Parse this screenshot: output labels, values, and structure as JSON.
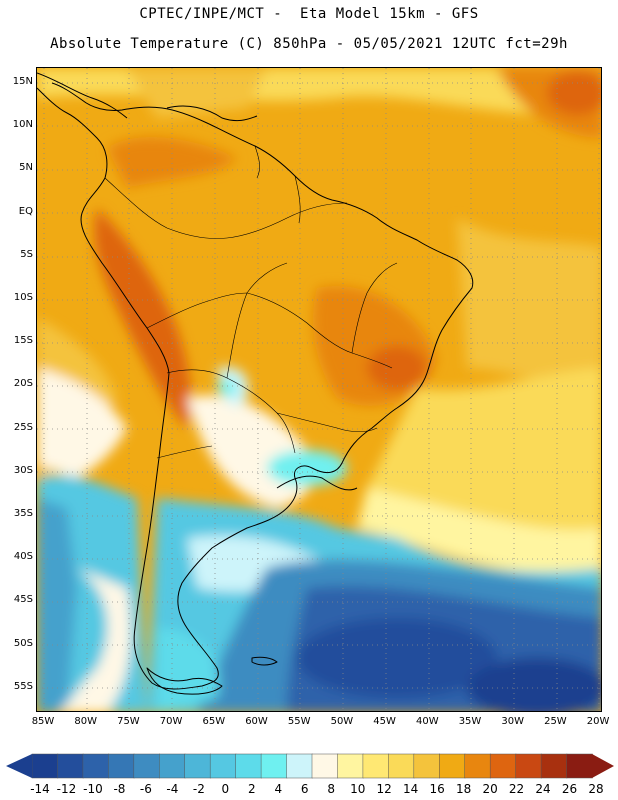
{
  "title_line1": "CPTEC/INPE/MCT -  Eta Model 15km - GFS",
  "title_line2": "Absolute Temperature (C) 850hPa - 05/05/2021 12UTC fct=29h",
  "lat_labels": [
    "15N",
    "10N",
    "5N",
    "EQ",
    "5S",
    "10S",
    "15S",
    "20S",
    "25S",
    "30S",
    "35S",
    "40S",
    "45S",
    "50S",
    "55S"
  ],
  "lon_labels": [
    "85W",
    "80W",
    "75W",
    "70W",
    "65W",
    "60W",
    "55W",
    "50W",
    "45W",
    "40W",
    "35W",
    "30W",
    "25W",
    "20W"
  ],
  "colorbar": {
    "labels": [
      "-14",
      "-12",
      "-10",
      "-8",
      "-6",
      "-4",
      "-2",
      "0",
      "2",
      "4",
      "6",
      "8",
      "10",
      "12",
      "14",
      "16",
      "18",
      "20",
      "22",
      "24",
      "26",
      "28"
    ],
    "colors": [
      "#1b3f8f",
      "#234e9c",
      "#2d62aa",
      "#3577b5",
      "#3e8cc1",
      "#45a1cc",
      "#4db6d8",
      "#55c8e2",
      "#5ddbea",
      "#6ff0f0",
      "#cdf4fa",
      "#fff8e6",
      "#fff5a0",
      "#ffe873",
      "#fada58",
      "#f4c33c",
      "#f0aa14",
      "#e8860f",
      "#de6510",
      "#c94812",
      "#a8300f",
      "#8a1c12"
    ],
    "low_color": "#1b3f8f",
    "high_color": "#8a1c12"
  }
}
